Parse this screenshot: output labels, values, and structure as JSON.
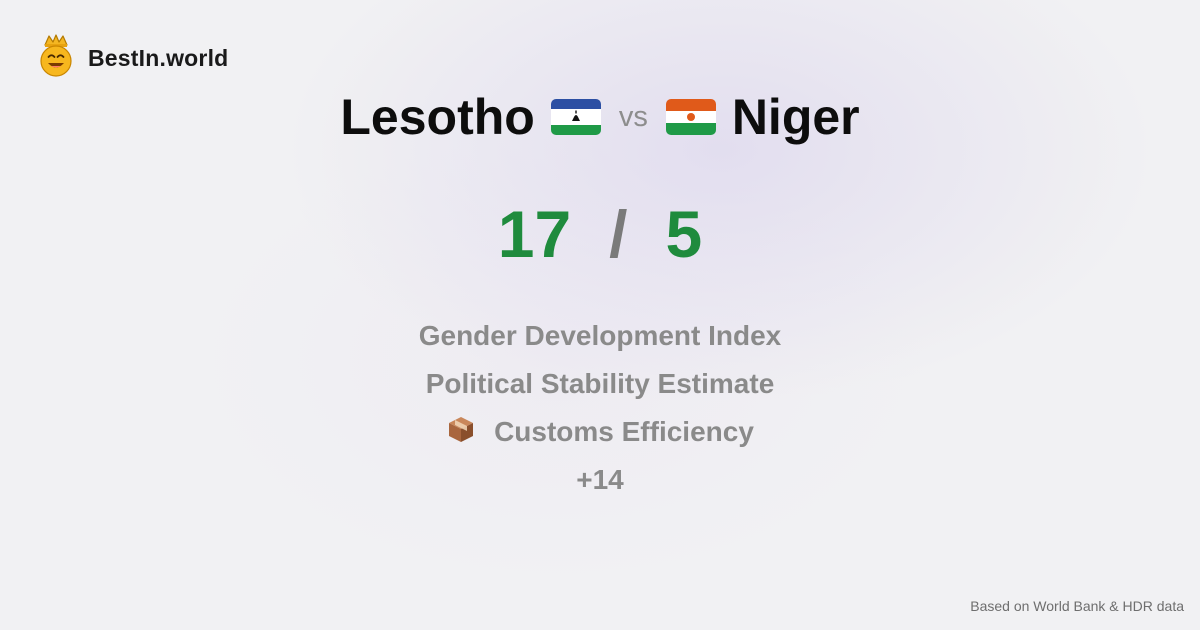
{
  "brand": {
    "name": "BestIn.world",
    "logo_icon": "crowned-smiley-icon"
  },
  "comparison": {
    "left": {
      "name": "Lesotho",
      "flag_icon": "lesotho-flag-icon"
    },
    "vs_label": "vs",
    "right": {
      "name": "Niger",
      "flag_icon": "niger-flag-icon"
    }
  },
  "score": {
    "left": "17",
    "separator": "/",
    "right": "5",
    "color": "#1f8b3d"
  },
  "metrics": [
    {
      "label": "Gender Development Index"
    },
    {
      "label": "Political Stability Estimate"
    },
    {
      "label": "Customs Efficiency",
      "icon": "package-icon"
    },
    {
      "label": "+14"
    }
  ],
  "footer": {
    "source": "Based on World Bank & HDR data"
  }
}
